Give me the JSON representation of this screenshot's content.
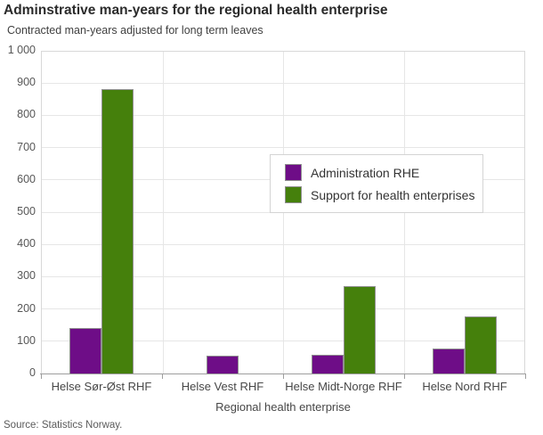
{
  "chart": {
    "title": "Adminstrative man-years for the regional health enterprise",
    "subtitle": "Contracted man-years adjusted for long term leaves",
    "xaxis_title": "Regional health enterprise",
    "source": "Source: Statistics Norway."
  },
  "chart_data": {
    "type": "bar",
    "title": "Adminstrative man-years for the regional health enterprise",
    "subtitle": "Contracted man-years adjusted for long term leaves",
    "xlabel": "Regional health enterprise",
    "ylabel": "",
    "categories": [
      "Helse Sør-Øst RHF",
      "Helse Vest RHF",
      "Helse Midt-Norge RHF",
      "Helse Nord RHF"
    ],
    "series": [
      {
        "name": "Administration RHE",
        "color": "#6e0d87",
        "values": [
          140,
          55,
          58,
          77
        ]
      },
      {
        "name": "Support for health enterprises",
        "color": "#45800c",
        "values": [
          880,
          0,
          270,
          178
        ]
      }
    ],
    "ylim": [
      0,
      1000
    ],
    "ytick_interval": 100,
    "ytick_labels": [
      "0",
      "100",
      "200",
      "300",
      "400",
      "500",
      "600",
      "700",
      "800",
      "900",
      "1 000"
    ],
    "grid": true,
    "legend_position": "overlay-center-right",
    "colors": {
      "grid": "#e6e6e6",
      "plot_border": "#d8d8d8",
      "axis_line": "#9e9e9e",
      "bar_border": "#8f8f8f"
    }
  }
}
